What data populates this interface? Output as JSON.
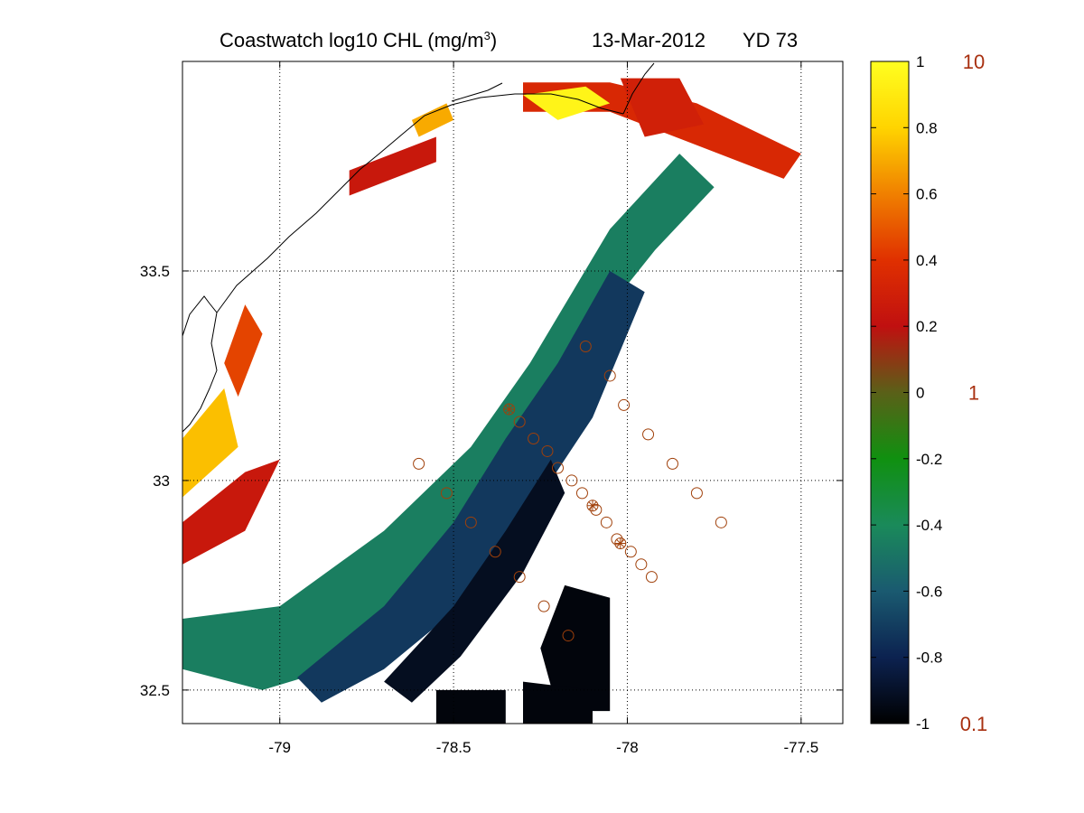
{
  "chart_data": {
    "type": "heatmap",
    "title": {
      "main": "Coastwatch  log10  CHL (mg/m",
      "sup": "3",
      "close": ")",
      "date": "13-Mar-2012",
      "yearday": "YD 73"
    },
    "xlabel": "",
    "ylabel": "",
    "xlim": [
      -79.28,
      -77.38
    ],
    "ylim": [
      32.42,
      34.0
    ],
    "grid": true,
    "x_ticks": [
      -79,
      -78.5,
      -78,
      -77.5
    ],
    "x_tick_labels": [
      "-79",
      "-78.5",
      "-78",
      "-77.5"
    ],
    "y_ticks": [
      32.5,
      33,
      33.5
    ],
    "y_tick_labels": [
      "32.5",
      "33",
      "33.5"
    ],
    "colorbar": {
      "colormap": "black-blue-green-red-orange-yellow",
      "colors": [
        "#000000",
        "#0c2250",
        "#1a5a70",
        "#1a8a5a",
        "#109010",
        "#5a6018",
        "#c01010",
        "#e03000",
        "#f08000",
        "#ffd400",
        "#ffff20"
      ],
      "range": [
        -1,
        1
      ],
      "ticks": [
        -1,
        -0.8,
        -0.6,
        -0.4,
        -0.2,
        0,
        0.2,
        0.4,
        0.6,
        0.8,
        1
      ],
      "tick_labels": [
        "-1",
        "-0.8",
        "-0.6",
        "-0.4",
        "-0.2",
        "0",
        "0.2",
        "0.4",
        "0.6",
        "0.8",
        "1"
      ],
      "right_labels": [
        {
          "value": 1,
          "label": "10"
        },
        {
          "value": 0,
          "label": "1"
        },
        {
          "value": -1,
          "label": "0.1"
        }
      ],
      "right_label_color": "#a83010"
    },
    "stations": {
      "marker": "circle",
      "color": "#a0400a",
      "points": [
        [
          -78.12,
          33.32
        ],
        [
          -78.05,
          33.25
        ],
        [
          -78.01,
          33.18
        ],
        [
          -77.94,
          33.11
        ],
        [
          -77.87,
          33.04
        ],
        [
          -77.8,
          32.97
        ],
        [
          -77.73,
          32.9
        ],
        [
          -78.34,
          33.17
        ],
        [
          -78.31,
          33.14
        ],
        [
          -78.27,
          33.1
        ],
        [
          -78.23,
          33.07
        ],
        [
          -78.2,
          33.03
        ],
        [
          -78.16,
          33.0
        ],
        [
          -78.13,
          32.97
        ],
        [
          -78.1,
          32.94
        ],
        [
          -78.09,
          32.93
        ],
        [
          -78.06,
          32.9
        ],
        [
          -78.03,
          32.86
        ],
        [
          -78.02,
          32.85
        ],
        [
          -77.99,
          32.83
        ],
        [
          -77.96,
          32.8
        ],
        [
          -77.93,
          32.77
        ],
        [
          -78.6,
          33.04
        ],
        [
          -78.52,
          32.97
        ],
        [
          -78.45,
          32.9
        ],
        [
          -78.38,
          32.83
        ],
        [
          -78.31,
          32.77
        ],
        [
          -78.24,
          32.7
        ],
        [
          -78.17,
          32.63
        ]
      ],
      "starred": [
        [
          -78.34,
          33.17
        ],
        [
          -78.1,
          32.94
        ],
        [
          -78.02,
          32.85
        ]
      ]
    },
    "chl_field": [
      {
        "shape": [
          [
            -79.28,
            32.67
          ],
          [
            -79.0,
            32.7
          ],
          [
            -78.7,
            32.88
          ],
          [
            -78.45,
            33.08
          ],
          [
            -78.28,
            33.28
          ],
          [
            -78.05,
            33.6
          ],
          [
            -77.85,
            33.78
          ],
          [
            -77.75,
            33.7
          ],
          [
            -77.92,
            33.55
          ],
          [
            -78.18,
            33.28
          ],
          [
            -78.4,
            32.97
          ],
          [
            -78.62,
            32.75
          ],
          [
            -78.85,
            32.55
          ],
          [
            -79.05,
            32.5
          ],
          [
            -79.28,
            32.55
          ]
        ],
        "value": -0.45
      },
      {
        "shape": [
          [
            -78.95,
            32.53
          ],
          [
            -78.7,
            32.7
          ],
          [
            -78.5,
            32.9
          ],
          [
            -78.35,
            33.1
          ],
          [
            -78.2,
            33.28
          ],
          [
            -78.05,
            33.5
          ],
          [
            -77.95,
            33.45
          ],
          [
            -78.1,
            33.15
          ],
          [
            -78.3,
            32.9
          ],
          [
            -78.48,
            32.7
          ],
          [
            -78.7,
            32.55
          ],
          [
            -78.88,
            32.47
          ]
        ],
        "value": -0.72
      },
      {
        "shape": [
          [
            -78.7,
            32.52
          ],
          [
            -78.5,
            32.7
          ],
          [
            -78.35,
            32.88
          ],
          [
            -78.22,
            33.05
          ],
          [
            -78.18,
            32.97
          ],
          [
            -78.3,
            32.78
          ],
          [
            -78.48,
            32.58
          ],
          [
            -78.62,
            32.47
          ]
        ],
        "value": -0.92
      },
      {
        "shape": [
          [
            -78.2,
            32.45
          ],
          [
            -78.05,
            32.45
          ],
          [
            -78.05,
            32.72
          ],
          [
            -78.18,
            32.75
          ],
          [
            -78.25,
            32.6
          ]
        ],
        "value": -0.97
      },
      {
        "shape": [
          [
            -78.3,
            32.42
          ],
          [
            -78.1,
            32.42
          ],
          [
            -78.1,
            32.5
          ],
          [
            -78.3,
            32.52
          ]
        ],
        "value": -0.97
      },
      {
        "shape": [
          [
            -78.55,
            32.42
          ],
          [
            -78.35,
            32.42
          ],
          [
            -78.35,
            32.5
          ],
          [
            -78.55,
            32.5
          ]
        ],
        "value": -0.97
      },
      {
        "shape": [
          [
            -78.3,
            33.88
          ],
          [
            -78.05,
            33.88
          ],
          [
            -77.8,
            33.8
          ],
          [
            -77.55,
            33.72
          ],
          [
            -77.5,
            33.78
          ],
          [
            -77.8,
            33.9
          ],
          [
            -78.05,
            33.95
          ],
          [
            -78.3,
            33.95
          ]
        ],
        "value": 0.35
      },
      {
        "shape": [
          [
            -78.02,
            33.96
          ],
          [
            -77.85,
            33.96
          ],
          [
            -77.78,
            33.85
          ],
          [
            -77.95,
            33.82
          ]
        ],
        "value": 0.3
      },
      {
        "shape": [
          [
            -78.3,
            33.92
          ],
          [
            -78.12,
            33.94
          ],
          [
            -78.05,
            33.9
          ],
          [
            -78.2,
            33.86
          ]
        ],
        "value": 0.95
      },
      {
        "shape": [
          [
            -79.28,
            32.9
          ],
          [
            -79.1,
            33.02
          ],
          [
            -79.0,
            33.05
          ],
          [
            -79.1,
            32.88
          ],
          [
            -79.28,
            32.8
          ]
        ],
        "value": 0.25
      },
      {
        "shape": [
          [
            -79.28,
            32.96
          ],
          [
            -79.12,
            33.08
          ],
          [
            -79.16,
            33.22
          ],
          [
            -79.28,
            33.1
          ]
        ],
        "value": 0.75
      },
      {
        "shape": [
          [
            -79.12,
            33.2
          ],
          [
            -79.05,
            33.35
          ],
          [
            -79.1,
            33.42
          ],
          [
            -79.16,
            33.28
          ]
        ],
        "value": 0.45
      },
      {
        "shape": [
          [
            -78.8,
            33.68
          ],
          [
            -78.55,
            33.76
          ],
          [
            -78.55,
            33.82
          ],
          [
            -78.8,
            33.74
          ]
        ],
        "value": 0.25
      },
      {
        "shape": [
          [
            -78.6,
            33.82
          ],
          [
            -78.5,
            33.86
          ],
          [
            -78.52,
            33.9
          ],
          [
            -78.62,
            33.86
          ]
        ],
        "value": 0.7
      }
    ]
  }
}
